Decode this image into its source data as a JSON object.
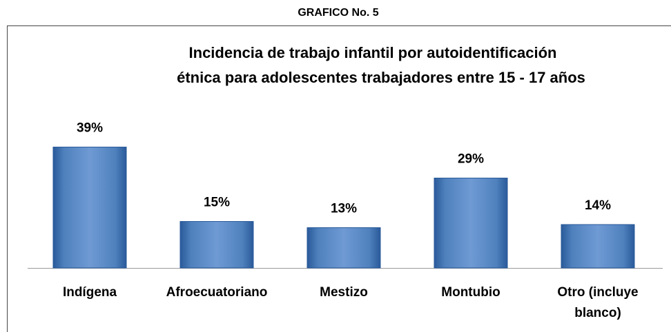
{
  "chart_data": {
    "type": "bar",
    "header": "GRAFICO No. 5",
    "title": [
      "Incidencia de trabajo infantil por autoidentificación",
      "étnica para adolescentes trabajadores entre  15 - 17 años"
    ],
    "categories": [
      "Indígena",
      "Afroecuatoriano",
      "Mestizo",
      "Montubio",
      "Otro (incluye blanco)"
    ],
    "values": [
      39,
      15,
      13,
      29,
      14
    ],
    "value_labels": [
      "39%",
      "15%",
      "13%",
      "29%",
      "14%"
    ],
    "color": "#4f81bd"
  }
}
